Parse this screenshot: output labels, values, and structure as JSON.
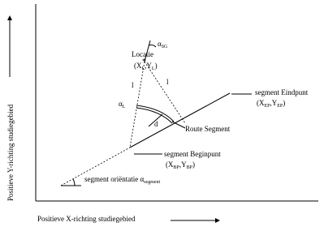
{
  "axes": {
    "y_label": "Positieve Y-richting studiegebied",
    "x_label": "Positieve X-richting studiegebied"
  },
  "location": {
    "label": "Locatie",
    "coords": [
      "(X",
      "L",
      ",Y",
      "L",
      ")"
    ]
  },
  "angle_sg": [
    "α",
    "SG"
  ],
  "distance_left": "l",
  "distance_right": "l",
  "angle_l": [
    "α",
    "L"
  ],
  "perpendicular": "d",
  "end_point": {
    "label": "segment Eindpunt",
    "coords": [
      "(X",
      "EP",
      ",Y",
      "EP",
      ")"
    ]
  },
  "route_segment": "Route Segment",
  "begin_point": {
    "label": "segment Beginpunt",
    "coords": [
      "(X",
      "BP",
      ",Y",
      "BP",
      ")"
    ]
  },
  "orientation": [
    "segment oriëntatie α",
    "segment"
  ]
}
